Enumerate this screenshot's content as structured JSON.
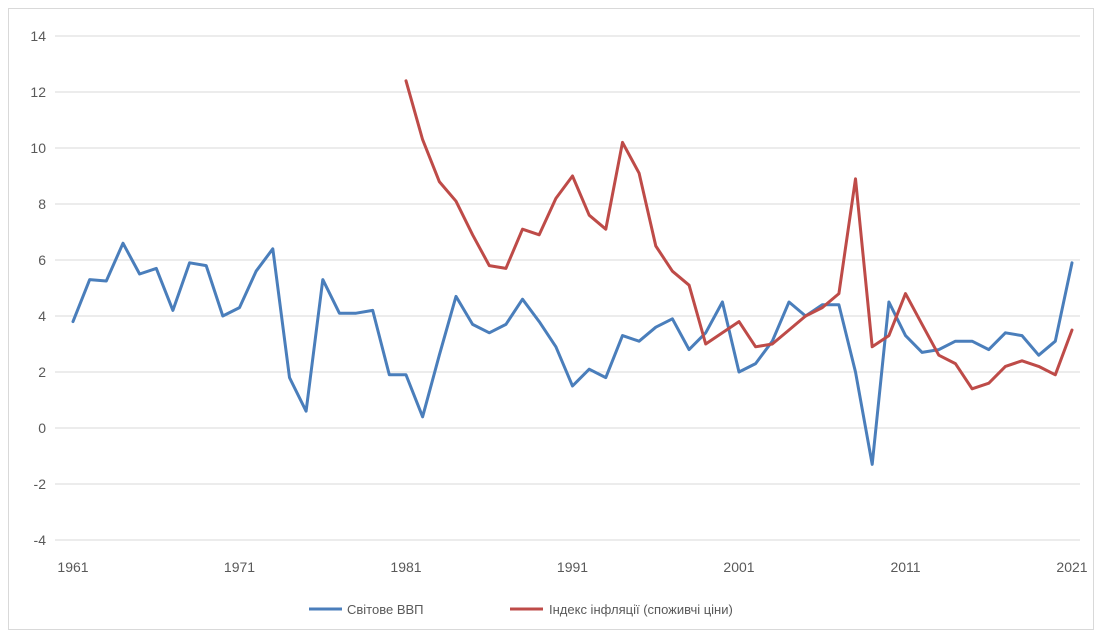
{
  "chart_data": {
    "type": "line",
    "title": "",
    "xlabel": "",
    "ylabel": "",
    "ylim": [
      -4,
      14
    ],
    "yticks": [
      -4,
      -2,
      0,
      2,
      4,
      6,
      8,
      10,
      12,
      14
    ],
    "xlim": [
      1961,
      2021
    ],
    "xticks": [
      1961,
      1971,
      1981,
      1991,
      2001,
      2011,
      2021
    ],
    "grid": true,
    "legend_position": "bottom",
    "series": [
      {
        "name": "Світове ВВП",
        "color": "#4a7ebb",
        "x": [
          1961,
          1962,
          1963,
          1964,
          1965,
          1966,
          1967,
          1968,
          1969,
          1970,
          1971,
          1972,
          1973,
          1974,
          1975,
          1976,
          1977,
          1978,
          1979,
          1980,
          1981,
          1982,
          1983,
          1984,
          1985,
          1986,
          1987,
          1988,
          1989,
          1990,
          1991,
          1992,
          1993,
          1994,
          1995,
          1996,
          1997,
          1998,
          1999,
          2000,
          2001,
          2002,
          2003,
          2004,
          2005,
          2006,
          2007,
          2008,
          2009,
          2010,
          2011,
          2012,
          2013,
          2014,
          2015,
          2016,
          2017,
          2018,
          2019,
          2020,
          2021
        ],
        "values": [
          3.8,
          5.3,
          5.25,
          6.6,
          5.5,
          5.7,
          4.2,
          5.9,
          5.8,
          4.0,
          4.3,
          5.6,
          6.4,
          1.8,
          0.6,
          5.3,
          4.1,
          4.1,
          4.2,
          1.9,
          1.9,
          0.4,
          2.6,
          4.7,
          3.7,
          3.4,
          3.7,
          4.6,
          3.8,
          2.9,
          1.5,
          2.1,
          1.8,
          3.3,
          3.1,
          3.6,
          3.9,
          2.8,
          3.4,
          4.5,
          2.0,
          2.3,
          3.1,
          4.5,
          4.0,
          4.4,
          4.4,
          2.0,
          -1.3,
          4.5,
          3.3,
          2.7,
          2.8,
          3.1,
          3.1,
          2.8,
          3.4,
          3.3,
          2.6,
          3.1,
          5.9
        ]
      },
      {
        "name": "Індекс інфляції (споживчі ціни)",
        "color": "#be4b48",
        "x": [
          1981,
          1982,
          1983,
          1984,
          1985,
          1986,
          1987,
          1988,
          1989,
          1990,
          1991,
          1992,
          1993,
          1994,
          1995,
          1996,
          1997,
          1998,
          1999,
          2000,
          2001,
          2002,
          2003,
          2004,
          2005,
          2006,
          2007,
          2008,
          2009,
          2010,
          2011,
          2012,
          2013,
          2014,
          2015,
          2016,
          2017,
          2018,
          2019,
          2020,
          2021
        ],
        "values": [
          12.4,
          10.3,
          8.8,
          8.1,
          6.9,
          5.8,
          5.7,
          7.1,
          6.9,
          8.2,
          9.0,
          7.6,
          7.1,
          10.2,
          9.1,
          6.5,
          5.6,
          5.1,
          3.0,
          3.4,
          3.8,
          2.9,
          3.0,
          3.5,
          4.0,
          4.3,
          4.8,
          8.9,
          2.9,
          3.3,
          4.8,
          3.7,
          2.6,
          2.3,
          1.4,
          1.6,
          2.2,
          2.4,
          2.2,
          1.9,
          3.5
        ]
      }
    ]
  }
}
